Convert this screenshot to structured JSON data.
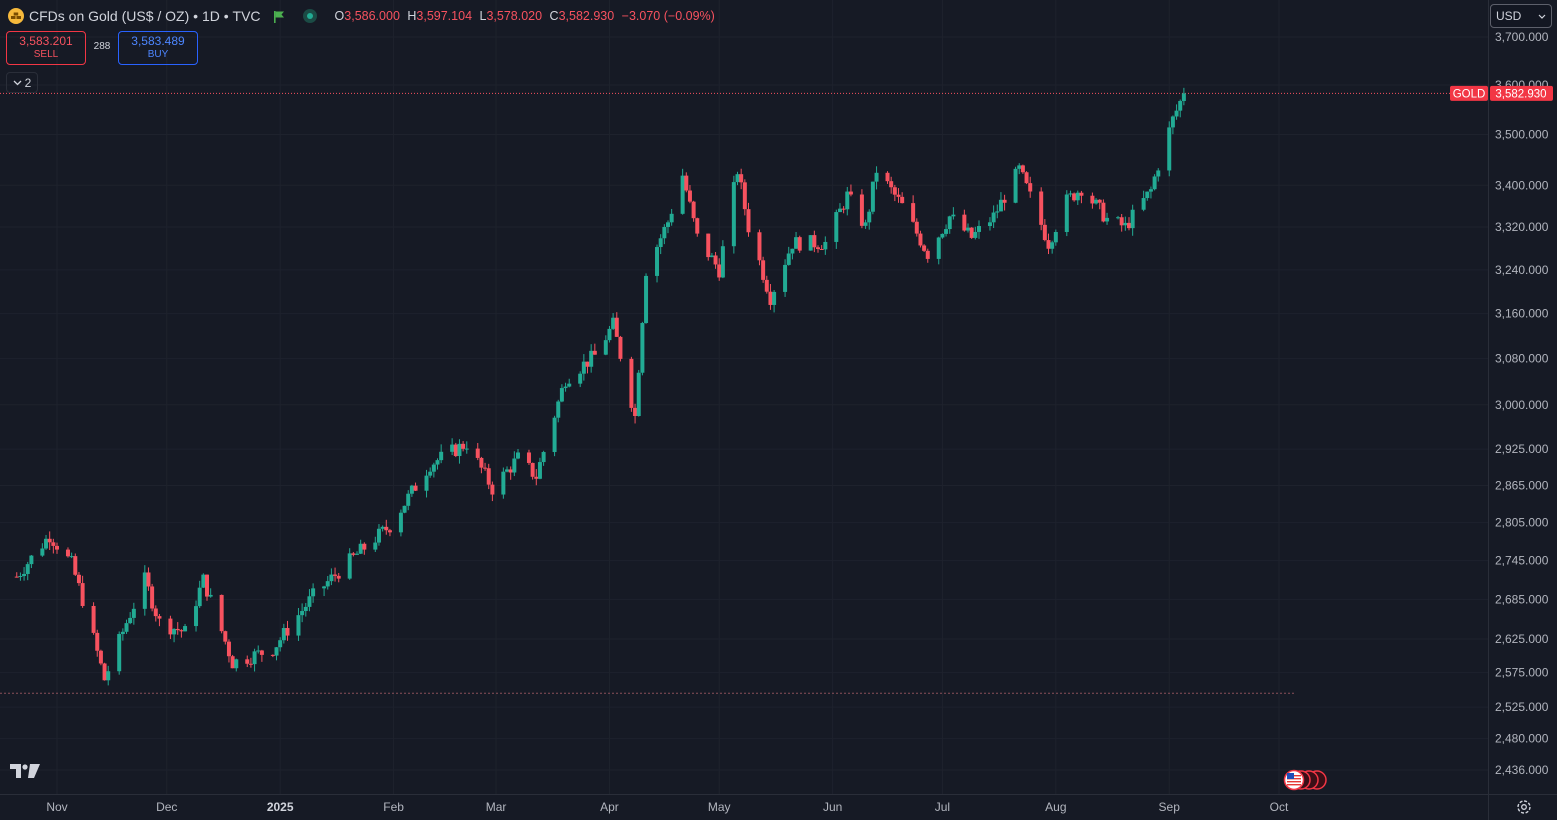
{
  "header": {
    "symbol_title": "CFDs on Gold (US$ / OZ)",
    "interval": "1D",
    "exchange": "TVC",
    "ohlc": {
      "open_label": "O",
      "open": "3,586.000",
      "high_label": "H",
      "high": "3,597.104",
      "low_label": "L",
      "low": "3,578.020",
      "close_label": "C",
      "close": "3,582.930",
      "change": "−3.070 (−0.09%)"
    }
  },
  "trade": {
    "sell_price": "3,583.201",
    "sell_label": "SELL",
    "spread": "288",
    "buy_price": "3,583.489",
    "buy_label": "BUY"
  },
  "indicators_collapse": {
    "count": "2"
  },
  "currency_select": {
    "value": "USD"
  },
  "price_label": {
    "name": "GOLD",
    "value": "3,582.930"
  },
  "colors": {
    "up": "#22ab94",
    "down": "#f7525f",
    "background": "#161a25",
    "grid": "#1e222d"
  },
  "chart_data": {
    "type": "candlestick",
    "title": "",
    "y_ticks": [
      3700,
      3600,
      3500,
      3400,
      3320,
      3240,
      3160,
      3080,
      3000,
      2925,
      2865,
      2805,
      2745,
      2685,
      2625,
      2575,
      2525,
      2480,
      2436
    ],
    "y_tick_labels": [
      "3,700.000",
      "3,600.000",
      "3,500.000",
      "3,400.000",
      "3,320.000",
      "3,240.000",
      "3,160.000",
      "3,080.000",
      "3,000.000",
      "2,925.000",
      "2,865.000",
      "2,805.000",
      "2,745.000",
      "2,685.000",
      "2,625.000",
      "2,575.000",
      "2,525.000",
      "2,480.000",
      "2,436.000"
    ],
    "x_labels": [
      {
        "date": "2024-11-01",
        "label": "Nov"
      },
      {
        "date": "2024-12-01",
        "label": "Dec"
      },
      {
        "date": "2025-01-01",
        "label": "2025"
      },
      {
        "date": "2025-02-01",
        "label": "Feb"
      },
      {
        "date": "2025-03-01",
        "label": "Mar"
      },
      {
        "date": "2025-04-01",
        "label": "Apr"
      },
      {
        "date": "2025-05-01",
        "label": "May"
      },
      {
        "date": "2025-06-01",
        "label": "Jun"
      },
      {
        "date": "2025-07-01",
        "label": "Jul"
      },
      {
        "date": "2025-08-01",
        "label": "Aug"
      },
      {
        "date": "2025-09-01",
        "label": "Sep"
      },
      {
        "date": "2025-10-01",
        "label": "Oct"
      }
    ],
    "last_price": 3582.93,
    "low_line": 2545,
    "close_path": [
      [
        "2024-10-21",
        2720
      ],
      [
        "2024-10-30",
        2785
      ],
      [
        "2024-11-05",
        2740
      ],
      [
        "2024-11-08",
        2685
      ],
      [
        "2024-11-14",
        2565
      ],
      [
        "2024-11-20",
        2650
      ],
      [
        "2024-11-25",
        2715
      ],
      [
        "2024-11-29",
        2650
      ],
      [
        "2024-12-06",
        2635
      ],
      [
        "2024-12-11",
        2715
      ],
      [
        "2024-12-19",
        2590
      ],
      [
        "2024-12-30",
        2610
      ],
      [
        "2025-01-10",
        2690
      ],
      [
        "2025-01-22",
        2755
      ],
      [
        "2025-01-31",
        2800
      ],
      [
        "2025-02-11",
        2900
      ],
      [
        "2025-02-21",
        2935
      ],
      [
        "2025-02-28",
        2860
      ],
      [
        "2025-03-07",
        2910
      ],
      [
        "2025-03-12",
        2880
      ],
      [
        "2025-03-20",
        3045
      ],
      [
        "2025-03-28",
        3085
      ],
      [
        "2025-04-02",
        3140
      ],
      [
        "2025-04-08",
        2980
      ],
      [
        "2025-04-11",
        3240
      ],
      [
        "2025-04-17",
        3330
      ],
      [
        "2025-04-21",
        3420
      ],
      [
        "2025-04-25",
        3300
      ],
      [
        "2025-05-01",
        3240
      ],
      [
        "2025-05-06",
        3430
      ],
      [
        "2025-05-09",
        3320
      ],
      [
        "2025-05-15",
        3190
      ],
      [
        "2025-05-21",
        3290
      ],
      [
        "2025-05-30",
        3290
      ],
      [
        "2025-06-05",
        3380
      ],
      [
        "2025-06-10",
        3320
      ],
      [
        "2025-06-13",
        3430
      ],
      [
        "2025-06-20",
        3360
      ],
      [
        "2025-06-27",
        3270
      ],
      [
        "2025-07-03",
        3340
      ],
      [
        "2025-07-09",
        3300
      ],
      [
        "2025-07-15",
        3340
      ],
      [
        "2025-07-22",
        3430
      ],
      [
        "2025-07-30",
        3290
      ],
      [
        "2025-08-04",
        3370
      ],
      [
        "2025-08-08",
        3395
      ],
      [
        "2025-08-15",
        3335
      ],
      [
        "2025-08-20",
        3320
      ],
      [
        "2025-08-27",
        3390
      ],
      [
        "2025-08-29",
        3440
      ],
      [
        "2025-09-02",
        3530
      ],
      [
        "2025-09-05",
        3582.93
      ]
    ]
  }
}
